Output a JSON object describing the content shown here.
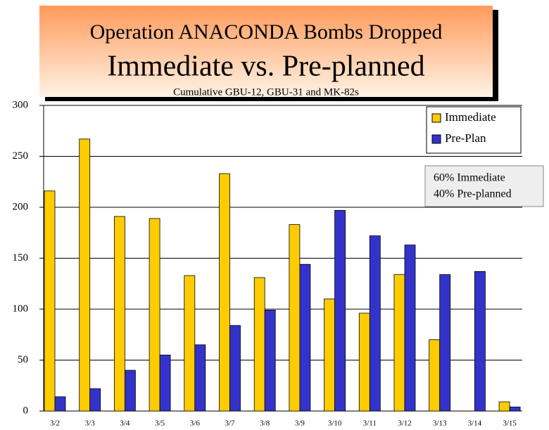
{
  "chart_data": {
    "type": "bar",
    "title": "Operation ANACONDA Bombs Dropped",
    "subtitle": "Immediate vs. Pre-planned",
    "note": "Cumulative GBU-12, GBU-31 and MK-82s",
    "annotations": [
      "60% Immediate",
      "40% Pre-planned"
    ],
    "categories": [
      "3/2",
      "3/3",
      "3/4",
      "3/5",
      "3/6",
      "3/7",
      "3/8",
      "3/9",
      "3/10",
      "3/11",
      "3/12",
      "3/13",
      "3/14",
      "3/15"
    ],
    "series": [
      {
        "name": "Immediate",
        "color": "#ffcc00",
        "values": [
          216,
          267,
          191,
          189,
          133,
          233,
          131,
          183,
          110,
          96,
          134,
          70,
          0,
          9
        ]
      },
      {
        "name": "Pre-Plan",
        "color": "#3333cc",
        "values": [
          14,
          22,
          40,
          55,
          65,
          84,
          99,
          144,
          197,
          172,
          163,
          134,
          137,
          4
        ]
      }
    ],
    "ylim": [
      0,
      300
    ],
    "yticks": [
      0,
      50,
      100,
      150,
      200,
      250,
      300
    ],
    "grid": true,
    "legend": "top-right"
  }
}
